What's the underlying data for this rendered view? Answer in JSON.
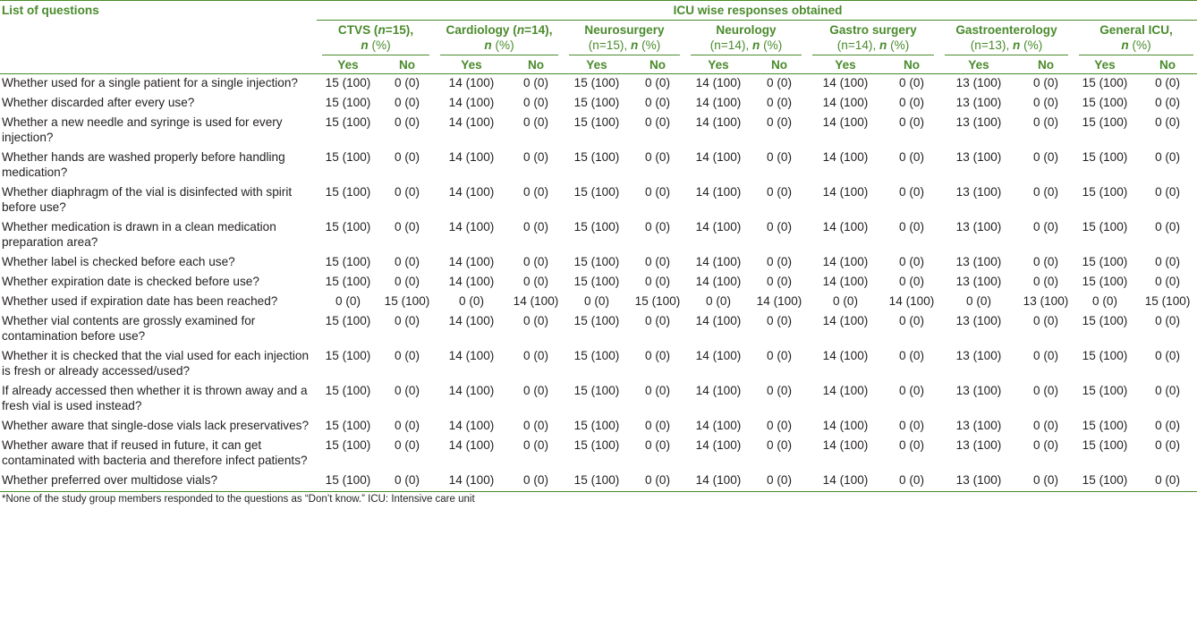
{
  "header": {
    "col1": "List of questions",
    "group_title": "ICU wise responses obtained",
    "groups": [
      {
        "pre": "CTVS (",
        "n": "n",
        "mid": "=15),",
        "n2": "n",
        "post": " (%)"
      },
      {
        "pre": "Cardiology (",
        "n": "n",
        "mid": "=14),",
        "n2": "n",
        "post": " (%)"
      },
      {
        "pre": "Neurosurgery",
        "n": "",
        "mid": "(n=15),",
        "n2": "n",
        "post": " (%)"
      },
      {
        "pre": "Neurology",
        "n": "",
        "mid": "(n=14),",
        "n2": "n",
        "post": " (%)"
      },
      {
        "pre": "Gastro surgery",
        "n": "",
        "mid": "(n=14),",
        "n2": "n",
        "post": " (%)"
      },
      {
        "pre": "Gastroenterology",
        "n": "",
        "mid": "(n=13),",
        "n2": "n",
        "post": " (%)"
      },
      {
        "pre": "General ICU,",
        "n": "",
        "mid": "",
        "n2": "n",
        "post": " (%)"
      }
    ],
    "yes": "Yes",
    "no": "No"
  },
  "rows": [
    {
      "q": "Whether used for a single patient for a single injection?",
      "v": [
        "15 (100)",
        "0 (0)",
        "14 (100)",
        "0 (0)",
        "15 (100)",
        "0 (0)",
        "14 (100)",
        "0 (0)",
        "14 (100)",
        "0 (0)",
        "13 (100)",
        "0 (0)",
        "15 (100)",
        "0 (0)"
      ]
    },
    {
      "q": "Whether discarded after every use?",
      "v": [
        "15 (100)",
        "0 (0)",
        "14 (100)",
        "0 (0)",
        "15 (100)",
        "0 (0)",
        "14 (100)",
        "0 (0)",
        "14 (100)",
        "0 (0)",
        "13 (100)",
        "0 (0)",
        "15 (100)",
        "0 (0)"
      ]
    },
    {
      "q": "Whether a new needle and syringe is used for every injection?",
      "v": [
        "15 (100)",
        "0 (0)",
        "14 (100)",
        "0 (0)",
        "15 (100)",
        "0 (0)",
        "14 (100)",
        "0 (0)",
        "14 (100)",
        "0 (0)",
        "13 (100)",
        "0 (0)",
        "15 (100)",
        "0 (0)"
      ]
    },
    {
      "q": "Whether hands are washed properly before handling medication?",
      "v": [
        "15 (100)",
        "0 (0)",
        "14 (100)",
        "0 (0)",
        "15 (100)",
        "0 (0)",
        "14 (100)",
        "0 (0)",
        "14 (100)",
        "0 (0)",
        "13 (100)",
        "0 (0)",
        "15 (100)",
        "0 (0)"
      ]
    },
    {
      "q": "Whether diaphragm of the vial is disinfected with spirit before use?",
      "v": [
        "15 (100)",
        "0 (0)",
        "14 (100)",
        "0 (0)",
        "15 (100)",
        "0 (0)",
        "14 (100)",
        "0 (0)",
        "14 (100)",
        "0 (0)",
        "13 (100)",
        "0 (0)",
        "15 (100)",
        "0 (0)"
      ]
    },
    {
      "q": "Whether medication is drawn in a clean medication preparation area?",
      "v": [
        "15 (100)",
        "0 (0)",
        "14 (100)",
        "0 (0)",
        "15 (100)",
        "0 (0)",
        "14 (100)",
        "0 (0)",
        "14 (100)",
        "0 (0)",
        "13 (100)",
        "0 (0)",
        "15 (100)",
        "0 (0)"
      ]
    },
    {
      "q": "Whether label is checked before each use?",
      "v": [
        "15 (100)",
        "0 (0)",
        "14 (100)",
        "0 (0)",
        "15 (100)",
        "0 (0)",
        "14 (100)",
        "0 (0)",
        "14 (100)",
        "0 (0)",
        "13 (100)",
        "0 (0)",
        "15 (100)",
        "0 (0)"
      ]
    },
    {
      "q": "Whether expiration date is checked before use?",
      "v": [
        "15 (100)",
        "0 (0)",
        "14 (100)",
        "0 (0)",
        "15 (100)",
        "0 (0)",
        "14 (100)",
        "0 (0)",
        "14 (100)",
        "0 (0)",
        "13 (100)",
        "0 (0)",
        "15 (100)",
        "0 (0)"
      ]
    },
    {
      "q": "Whether used if expiration date has been reached?",
      "v": [
        "0 (0)",
        "15 (100)",
        "0 (0)",
        "14 (100)",
        "0 (0)",
        "15 (100)",
        "0 (0)",
        "14 (100)",
        "0 (0)",
        "14 (100)",
        "0 (0)",
        "13 (100)",
        "0 (0)",
        "15 (100)"
      ]
    },
    {
      "q": "Whether vial contents are grossly examined for contamination before use?",
      "v": [
        "15 (100)",
        "0 (0)",
        "14 (100)",
        "0 (0)",
        "15 (100)",
        "0 (0)",
        "14 (100)",
        "0 (0)",
        "14 (100)",
        "0 (0)",
        "13 (100)",
        "0 (0)",
        "15 (100)",
        "0 (0)"
      ]
    },
    {
      "q": "Whether it is checked that the vial used for each injection is fresh or already accessed/used?",
      "v": [
        "15 (100)",
        "0 (0)",
        "14 (100)",
        "0 (0)",
        "15 (100)",
        "0 (0)",
        "14 (100)",
        "0 (0)",
        "14 (100)",
        "0 (0)",
        "13 (100)",
        "0 (0)",
        "15 (100)",
        "0 (0)"
      ]
    },
    {
      "q": "If already accessed then whether it is thrown away and a fresh vial is used instead?",
      "v": [
        "15 (100)",
        "0 (0)",
        "14 (100)",
        "0 (0)",
        "15 (100)",
        "0 (0)",
        "14 (100)",
        "0 (0)",
        "14 (100)",
        "0 (0)",
        "13 (100)",
        "0 (0)",
        "15 (100)",
        "0 (0)"
      ]
    },
    {
      "q": "Whether aware that single-dose vials lack preservatives?",
      "v": [
        "15 (100)",
        "0 (0)",
        "14 (100)",
        "0 (0)",
        "15 (100)",
        "0 (0)",
        "14 (100)",
        "0 (0)",
        "14 (100)",
        "0 (0)",
        "13 (100)",
        "0 (0)",
        "15 (100)",
        "0 (0)"
      ]
    },
    {
      "q": "Whether aware that if reused in future, it can get contaminated with bacteria and therefore infect patients?",
      "v": [
        "15 (100)",
        "0 (0)",
        "14 (100)",
        "0 (0)",
        "15 (100)",
        "0 (0)",
        "14 (100)",
        "0 (0)",
        "14 (100)",
        "0 (0)",
        "13 (100)",
        "0 (0)",
        "15 (100)",
        "0 (0)"
      ]
    },
    {
      "q": "Whether preferred over multidose vials?",
      "v": [
        "15 (100)",
        "0 (0)",
        "14 (100)",
        "0 (0)",
        "15 (100)",
        "0 (0)",
        "14 (100)",
        "0 (0)",
        "14 (100)",
        "0 (0)",
        "13 (100)",
        "0 (0)",
        "15 (100)",
        "0 (0)"
      ]
    }
  ],
  "footnote": "*None of the study group members responded to the questions as “Don’t know.” ICU: Intensive care unit"
}
